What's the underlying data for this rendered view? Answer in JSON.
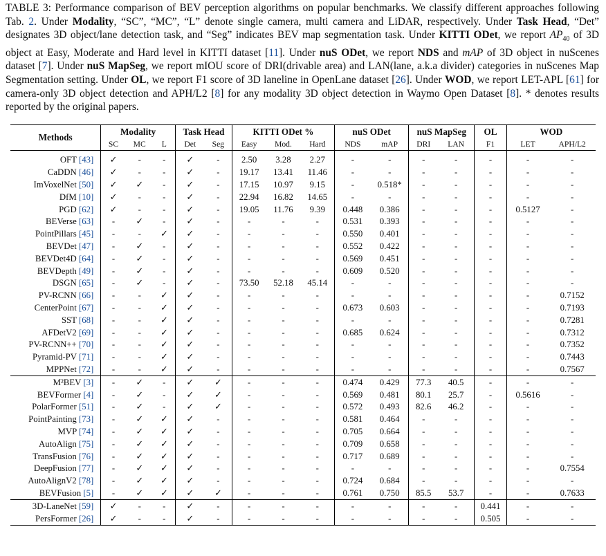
{
  "caption": {
    "label": "TABLE 3:",
    "text": "Performance comparison of BEV perception algorithms on popular benchmarks. We classify different approaches following Tab. 2. Under Modality, “SC”, “MC”, “L” denote single camera, multi camera and LiDAR, respectively. Under Task Head, “Det” designates 3D object/lane detection task, and “Seg” indicates BEV map segmentation task. Under KITTI ODet, we report AP40 of 3D object at Easy, Moderate and Hard level in KITTI dataset [11]. Under nuS ODet, we report NDS and mAP of 3D object in nuScenes dataset [7]. Under nuS MapSeg, we report mIOU score of DRI(drivable area) and LAN(lane, a.k.a divider) categories in nuScenes Map Segmentation setting. Under OL, we report F1 score of 3D laneline in OpenLane dataset [26]. Under WOD, we report LET-APL [61] for camera-only 3D object detection and APH/L2 [8] for any modality 3D object detection in Waymo Open Dataset [8]. * denotes results reported by the original papers."
  },
  "table": {
    "methods_header": "Methods",
    "groups": [
      "Modality",
      "Task Head",
      "KITTI ODet %",
      "nuS ODet",
      "nuS MapSeg",
      "OL",
      "WOD"
    ],
    "subheaders": [
      "SC",
      "MC",
      "L",
      "Det",
      "Seg",
      "Easy",
      "Mod.",
      "Hard",
      "NDS",
      "mAP",
      "DRI",
      "LAN",
      "F1",
      "LET",
      "APH/L2"
    ],
    "sections": [
      [
        {
          "name": "OFT",
          "ref": "[43]",
          "v": [
            "✓",
            "-",
            "-",
            "✓",
            "-",
            "2.50",
            "3.28",
            "2.27",
            "-",
            "-",
            "-",
            "-",
            "-",
            "-",
            "-"
          ]
        },
        {
          "name": "CaDDN",
          "ref": "[46]",
          "v": [
            "✓",
            "-",
            "-",
            "✓",
            "-",
            "19.17",
            "13.41",
            "11.46",
            "-",
            "-",
            "-",
            "-",
            "-",
            "-",
            "-"
          ]
        },
        {
          "name": "ImVoxelNet",
          "ref": "[50]",
          "v": [
            "✓",
            "✓",
            "-",
            "✓",
            "-",
            "17.15",
            "10.97",
            "9.15",
            "-",
            "0.518*",
            "-",
            "-",
            "-",
            "-",
            "-"
          ]
        },
        {
          "name": "DfM",
          "ref": "[10]",
          "v": [
            "✓",
            "-",
            "-",
            "✓",
            "-",
            "22.94",
            "16.82",
            "14.65",
            "-",
            "-",
            "-",
            "-",
            "-",
            "-",
            "-"
          ]
        },
        {
          "name": "PGD",
          "ref": "[62]",
          "v": [
            "✓",
            "-",
            "-",
            "✓",
            "-",
            "19.05",
            "11.76",
            "9.39",
            "0.448",
            "0.386",
            "-",
            "-",
            "-",
            "0.5127",
            "-"
          ]
        },
        {
          "name": "BEVerse",
          "ref": "[63]",
          "v": [
            "-",
            "✓",
            "-",
            "✓",
            "-",
            "-",
            "-",
            "-",
            "0.531",
            "0.393",
            "-",
            "-",
            "-",
            "-",
            "-"
          ]
        },
        {
          "name": "PointPillars",
          "ref": "[45]",
          "v": [
            "-",
            "-",
            "✓",
            "✓",
            "-",
            "-",
            "-",
            "-",
            "0.550",
            "0.401",
            "-",
            "-",
            "-",
            "-",
            "-"
          ]
        },
        {
          "name": "BEVDet",
          "ref": "[47]",
          "v": [
            "-",
            "✓",
            "-",
            "✓",
            "-",
            "-",
            "-",
            "-",
            "0.552",
            "0.422",
            "-",
            "-",
            "-",
            "-",
            "-"
          ]
        },
        {
          "name": "BEVDet4D",
          "ref": "[64]",
          "v": [
            "-",
            "✓",
            "-",
            "✓",
            "-",
            "-",
            "-",
            "-",
            "0.569",
            "0.451",
            "-",
            "-",
            "-",
            "-",
            "-"
          ]
        },
        {
          "name": "BEVDepth",
          "ref": "[49]",
          "v": [
            "-",
            "✓",
            "-",
            "✓",
            "-",
            "-",
            "-",
            "-",
            "0.609",
            "0.520",
            "-",
            "-",
            "-",
            "-",
            "-"
          ]
        },
        {
          "name": "DSGN",
          "ref": "[65]",
          "v": [
            "-",
            "✓",
            "-",
            "✓",
            "-",
            "73.50",
            "52.18",
            "45.14",
            "-",
            "-",
            "-",
            "-",
            "-",
            "-",
            "-"
          ]
        },
        {
          "name": "PV-RCNN",
          "ref": "[66]",
          "v": [
            "-",
            "-",
            "✓",
            "✓",
            "-",
            "-",
            "-",
            "-",
            "-",
            "-",
            "-",
            "-",
            "-",
            "-",
            "0.7152"
          ]
        },
        {
          "name": "CenterPoint",
          "ref": "[67]",
          "v": [
            "-",
            "-",
            "✓",
            "✓",
            "-",
            "-",
            "-",
            "-",
            "0.673",
            "0.603",
            "-",
            "-",
            "-",
            "-",
            "0.7193"
          ]
        },
        {
          "name": "SST",
          "ref": "[68]",
          "v": [
            "-",
            "-",
            "✓",
            "✓",
            "-",
            "-",
            "-",
            "-",
            "-",
            "-",
            "-",
            "-",
            "-",
            "-",
            "0.7281"
          ]
        },
        {
          "name": "AFDetV2",
          "ref": "[69]",
          "v": [
            "-",
            "-",
            "✓",
            "✓",
            "-",
            "-",
            "-",
            "-",
            "0.685",
            "0.624",
            "-",
            "-",
            "-",
            "-",
            "0.7312"
          ]
        },
        {
          "name": "PV-RCNN++",
          "ref": "[70]",
          "v": [
            "-",
            "-",
            "✓",
            "✓",
            "-",
            "-",
            "-",
            "-",
            "-",
            "-",
            "-",
            "-",
            "-",
            "-",
            "0.7352"
          ]
        },
        {
          "name": "Pyramid-PV",
          "ref": "[71]",
          "v": [
            "-",
            "-",
            "✓",
            "✓",
            "-",
            "-",
            "-",
            "-",
            "-",
            "-",
            "-",
            "-",
            "-",
            "-",
            "0.7443"
          ]
        },
        {
          "name": "MPPNet",
          "ref": "[72]",
          "v": [
            "-",
            "-",
            "✓",
            "✓",
            "-",
            "-",
            "-",
            "-",
            "-",
            "-",
            "-",
            "-",
            "-",
            "-",
            "0.7567"
          ]
        }
      ],
      [
        {
          "name": "M²BEV",
          "ref": "[3]",
          "v": [
            "-",
            "✓",
            "-",
            "✓",
            "✓",
            "-",
            "-",
            "-",
            "0.474",
            "0.429",
            "77.3",
            "40.5",
            "-",
            "-",
            "-"
          ]
        },
        {
          "name": "BEVFormer",
          "ref": "[4]",
          "v": [
            "-",
            "✓",
            "-",
            "✓",
            "✓",
            "-",
            "-",
            "-",
            "0.569",
            "0.481",
            "80.1",
            "25.7",
            "-",
            "0.5616",
            "-"
          ]
        },
        {
          "name": "PolarFormer",
          "ref": "[51]",
          "v": [
            "-",
            "✓",
            "-",
            "✓",
            "✓",
            "-",
            "-",
            "-",
            "0.572",
            "0.493",
            "82.6",
            "46.2",
            "-",
            "-",
            "-"
          ]
        },
        {
          "name": "PointPainting",
          "ref": "[73]",
          "v": [
            "-",
            "✓",
            "✓",
            "✓",
            "-",
            "-",
            "-",
            "-",
            "0.581",
            "0.464",
            "-",
            "-",
            "-",
            "-",
            "-"
          ]
        },
        {
          "name": "MVP",
          "ref": "[74]",
          "v": [
            "-",
            "✓",
            "✓",
            "✓",
            "-",
            "-",
            "-",
            "-",
            "0.705",
            "0.664",
            "-",
            "-",
            "-",
            "-",
            "-"
          ]
        },
        {
          "name": "AutoAlign",
          "ref": "[75]",
          "v": [
            "-",
            "✓",
            "✓",
            "✓",
            "-",
            "-",
            "-",
            "-",
            "0.709",
            "0.658",
            "-",
            "-",
            "-",
            "-",
            "-"
          ]
        },
        {
          "name": "TransFusion",
          "ref": "[76]",
          "v": [
            "-",
            "✓",
            "✓",
            "✓",
            "-",
            "-",
            "-",
            "-",
            "0.717",
            "0.689",
            "-",
            "-",
            "-",
            "-",
            "-"
          ]
        },
        {
          "name": "DeepFusion",
          "ref": "[77]",
          "v": [
            "-",
            "✓",
            "✓",
            "✓",
            "-",
            "-",
            "-",
            "-",
            "-",
            "-",
            "-",
            "-",
            "-",
            "-",
            "0.7554"
          ]
        },
        {
          "name": "AutoAlignV2",
          "ref": "[78]",
          "v": [
            "-",
            "✓",
            "✓",
            "✓",
            "-",
            "-",
            "-",
            "-",
            "0.724",
            "0.684",
            "-",
            "-",
            "-",
            "-",
            "-"
          ]
        },
        {
          "name": "BEVFusion",
          "ref": "[5]",
          "v": [
            "-",
            "✓",
            "✓",
            "✓",
            "✓",
            "-",
            "-",
            "-",
            "0.761",
            "0.750",
            "85.5",
            "53.7",
            "-",
            "-",
            "0.7633"
          ]
        }
      ],
      [
        {
          "name": "3D-LaneNet",
          "ref": "[59]",
          "v": [
            "✓",
            "-",
            "-",
            "✓",
            "-",
            "-",
            "-",
            "-",
            "-",
            "-",
            "-",
            "-",
            "0.441",
            "-",
            "-"
          ]
        },
        {
          "name": "PersFormer",
          "ref": "[26]",
          "v": [
            "✓",
            "-",
            "-",
            "✓",
            "-",
            "-",
            "-",
            "-",
            "-",
            "-",
            "-",
            "-",
            "0.505",
            "-",
            "-"
          ]
        }
      ]
    ]
  }
}
